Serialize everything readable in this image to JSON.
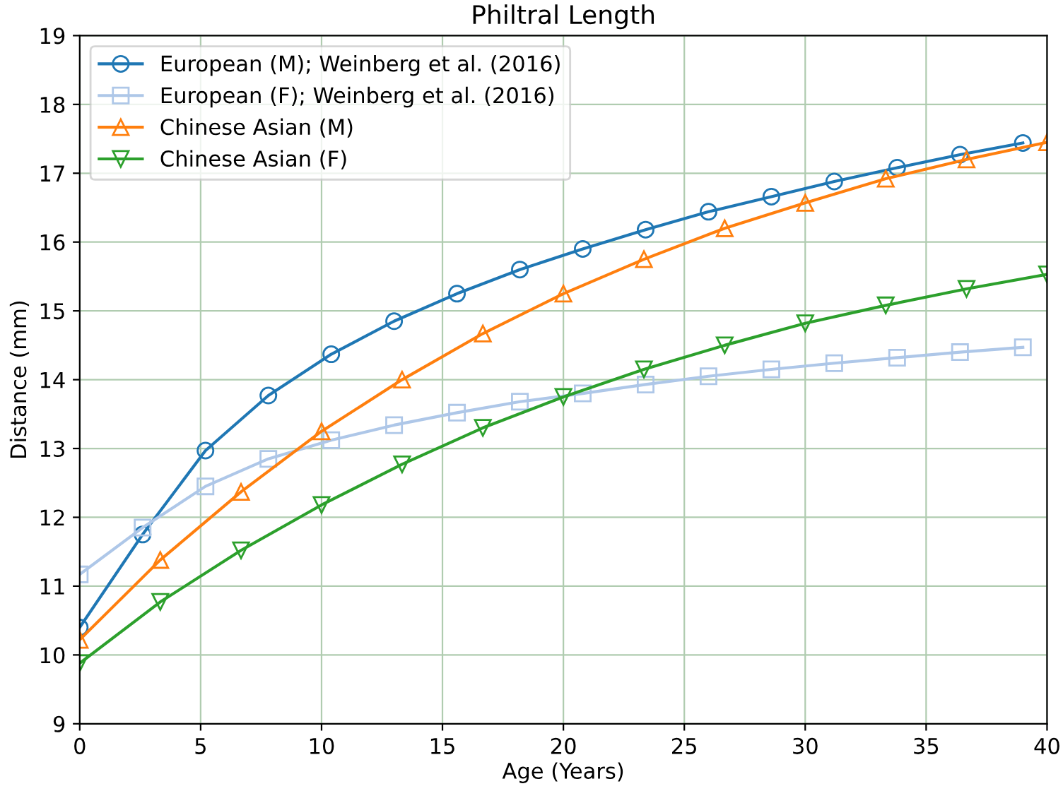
{
  "chart_data": {
    "type": "line",
    "title": "Philtral Length",
    "xlabel": "Age (Years)",
    "ylabel": "Distance (mm)",
    "xlim": [
      0,
      40
    ],
    "xticks": [
      0,
      5,
      10,
      15,
      20,
      25,
      30,
      35,
      40
    ],
    "ylim": [
      9,
      19
    ],
    "yticks": [
      9,
      10,
      11,
      12,
      13,
      14,
      15,
      16,
      17,
      18,
      19
    ],
    "grid": true,
    "legend": "top left",
    "line_style": "solid",
    "series": [
      {
        "name": "European (M); Weinberg et al. (2016)",
        "color": "#1f77b4",
        "marker": "circle",
        "x": [
          0,
          2.6,
          5.2,
          7.8,
          10.4,
          13.0,
          15.6,
          18.2,
          20.8,
          23.4,
          26.0,
          28.6,
          31.2,
          33.8,
          36.4,
          39
        ],
        "values": [
          10.4,
          11.75,
          12.97,
          13.77,
          14.37,
          14.85,
          15.25,
          15.6,
          15.9,
          16.18,
          16.44,
          16.66,
          16.88,
          17.08,
          17.27,
          17.44
        ]
      },
      {
        "name": "European (F); Weinberg et al. (2016)",
        "color": "#aec7e8",
        "marker": "square",
        "x": [
          0,
          2.6,
          5.2,
          7.8,
          10.4,
          13.0,
          15.6,
          18.2,
          20.8,
          23.4,
          26.0,
          28.6,
          31.2,
          33.8,
          36.4,
          39
        ],
        "values": [
          11.17,
          11.85,
          12.45,
          12.85,
          13.12,
          13.34,
          13.52,
          13.68,
          13.8,
          13.93,
          14.05,
          14.15,
          14.24,
          14.32,
          14.4,
          14.47
        ]
      },
      {
        "name": "Chinese Asian (M)",
        "color": "#ff7f0e",
        "marker": "triangle",
        "x": [
          0,
          3.33,
          6.67,
          10,
          13.33,
          16.67,
          20,
          23.33,
          26.67,
          30,
          33.33,
          36.67,
          40
        ],
        "values": [
          10.22,
          11.38,
          12.37,
          13.25,
          14.0,
          14.67,
          15.25,
          15.75,
          16.2,
          16.57,
          16.92,
          17.2,
          17.45
        ]
      },
      {
        "name": "Chinese Asian (F)",
        "color": "#2ca02c",
        "marker": "triangle_down",
        "x": [
          0,
          3.33,
          6.67,
          10,
          13.33,
          16.67,
          20,
          23.33,
          26.67,
          30,
          33.33,
          36.67,
          40
        ],
        "values": [
          9.88,
          10.77,
          11.52,
          12.18,
          12.77,
          13.3,
          13.75,
          14.15,
          14.5,
          14.82,
          15.08,
          15.32,
          15.53
        ]
      }
    ]
  }
}
